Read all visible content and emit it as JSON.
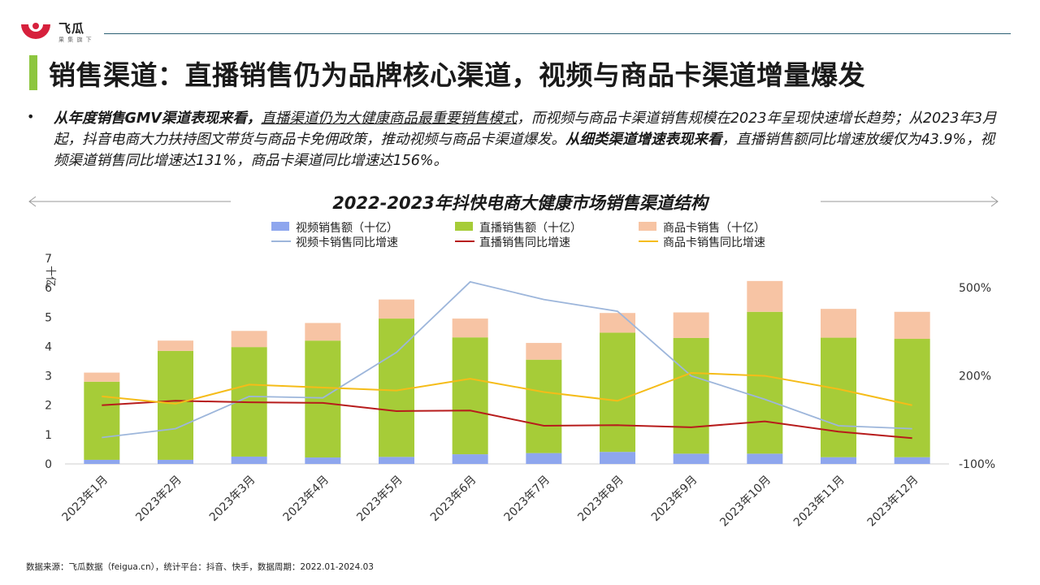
{
  "brand": {
    "name": "飞瓜",
    "tagline": "果 集 旗 下",
    "accent": "#d6203c"
  },
  "title": "销售渠道：直播销售仍为品牌核心渠道，视频与商品卡渠道增量爆发",
  "paragraph": {
    "seg1": "从年度销售GMV渠道表现来看，",
    "seg2": "直播渠道仍为大健康商品最重要销售模式",
    "seg3": "，而视频与商品卡渠道销售规模在2023年呈现快速增长趋势；从2023年3月起，抖音电商大力扶持图文带货与商品卡免佣政策，推动视频与商品卡渠道爆发。",
    "seg4": "从细类渠道增速表现来看",
    "seg5": "，直播销售额同比增速放缓仅为43.9%，视频渠道销售同比增速达131%，商品卡渠道同比增速达156%。"
  },
  "source": "数据来源：飞瓜数据（feigua.cn），统计平台：抖音、快手，数据周期：2022.01-2024.03",
  "chart_data": {
    "type": "bar",
    "title": "2022-2023年抖快电商大健康市场销售渠道结构",
    "ylabel": "十亿",
    "ylim": [
      0,
      7
    ],
    "yticks": [
      "0",
      "1",
      "2",
      "3",
      "4",
      "5",
      "6",
      "7"
    ],
    "y2lim": [
      -100,
      600
    ],
    "y2ticks": [
      "-100%",
      "200%",
      "500%"
    ],
    "categories": [
      "2023年1月",
      "2023年2月",
      "2023年3月",
      "2023年4月",
      "2023年5月",
      "2023年6月",
      "2023年7月",
      "2023年8月",
      "2023年9月",
      "2023年10月",
      "2023年11月",
      "2023年12月"
    ],
    "series": [
      {
        "name": "视频销售额（十亿）",
        "type": "bar",
        "color": "#8ea6ee",
        "values": [
          0.14,
          0.14,
          0.25,
          0.22,
          0.24,
          0.33,
          0.37,
          0.41,
          0.35,
          0.35,
          0.23,
          0.23
        ]
      },
      {
        "name": "直播销售额（十亿）",
        "type": "bar",
        "color": "#a6cc38",
        "values": [
          2.66,
          3.71,
          3.73,
          3.98,
          4.71,
          3.98,
          3.18,
          4.06,
          3.94,
          4.83,
          4.07,
          4.03
        ]
      },
      {
        "name": "商品卡销售（十亿）",
        "type": "bar",
        "color": "#f7c4a4",
        "values": [
          0.31,
          0.35,
          0.55,
          0.6,
          0.65,
          0.64,
          0.57,
          0.67,
          0.87,
          1.05,
          0.98,
          0.92
        ]
      },
      {
        "name": "视频卡销售同比增速",
        "type": "line",
        "axis": "right",
        "color": "#9db6db",
        "values": [
          -10,
          20,
          130,
          125,
          280,
          520,
          460,
          420,
          200,
          120,
          30,
          20
        ]
      },
      {
        "name": "直播销售同比增速",
        "type": "line",
        "axis": "right",
        "color": "#b71c1c",
        "values": [
          100,
          115,
          110,
          108,
          80,
          82,
          30,
          32,
          25,
          45,
          10,
          -12
        ]
      },
      {
        "name": "商品卡销售同比增速",
        "type": "line",
        "axis": "right",
        "color": "#f5bc18",
        "values": [
          130,
          105,
          170,
          160,
          150,
          190,
          145,
          115,
          210,
          200,
          155,
          100
        ]
      }
    ],
    "legend_position": "top",
    "grid": false
  }
}
